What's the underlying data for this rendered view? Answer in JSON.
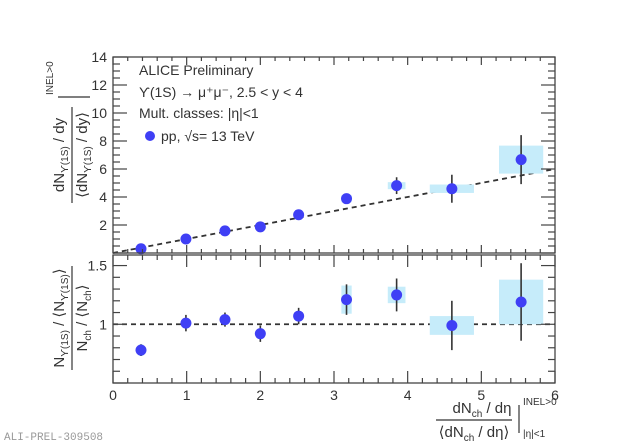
{
  "watermark": "ALI-PREL-309508",
  "chart_data": [
    {
      "panel": "top",
      "type": "scatter",
      "legend": {
        "header_lines": [
          "ALICE Preliminary",
          "ϒ(1S) → μ⁺μ⁻, 2.5 < y < 4",
          "Mult. classes: |η|<1"
        ],
        "entries": [
          {
            "label": "pp, √s = 13 TeV",
            "label_text": "pp, √s= 13 TeV",
            "color": "#3f3ff5"
          }
        ],
        "placement": "top-left"
      },
      "ylabel": {
        "num": "dN_ϒ(1S) / dy",
        "den": "⟨dN_ϒ(1S) / dy⟩",
        "sup": "INEL>0"
      },
      "ylim": [
        0,
        14
      ],
      "yticks": [
        2,
        4,
        6,
        8,
        10,
        12,
        14
      ],
      "xlim": [
        0,
        6
      ],
      "reference_line": {
        "type": "y=x",
        "style": "dashed"
      },
      "points": [
        {
          "x": 0.38,
          "y": 0.3,
          "stat": 0.05,
          "syst": 0.05,
          "sx": 0.03
        },
        {
          "x": 0.99,
          "y": 1.0,
          "stat": 0.07,
          "syst": 0.05,
          "sx": 0.03
        },
        {
          "x": 1.52,
          "y": 1.58,
          "stat": 0.08,
          "syst": 0.06,
          "sx": 0.03
        },
        {
          "x": 2.0,
          "y": 1.87,
          "stat": 0.1,
          "syst": 0.06,
          "sx": 0.03
        },
        {
          "x": 2.52,
          "y": 2.73,
          "stat": 0.18,
          "syst": 0.1,
          "sx": 0.04
        },
        {
          "x": 3.17,
          "y": 3.88,
          "stat": 0.3,
          "syst": 0.25,
          "sx": 0.07
        },
        {
          "x": 3.85,
          "y": 4.81,
          "stat": 0.6,
          "syst": 0.25,
          "sx": 0.12
        },
        {
          "x": 4.6,
          "y": 4.59,
          "stat": 1.0,
          "syst": 0.3,
          "sx": 0.3
        },
        {
          "x": 5.54,
          "y": 6.67,
          "stat": 1.75,
          "syst": 1.0,
          "sx": 0.3
        }
      ]
    },
    {
      "panel": "bottom",
      "type": "scatter",
      "ylabel": {
        "num": "N_ϒ(1S) / ⟨N_ϒ(1S)⟩",
        "den": "N_ch / ⟨N_ch⟩"
      },
      "ylim": [
        0.5,
        1.59
      ],
      "yticks": [
        1,
        1.5
      ],
      "ytick_labels": [
        "1",
        "1.5"
      ],
      "xlim": [
        0,
        6
      ],
      "xticks": [
        0,
        1,
        2,
        3,
        4,
        5,
        6
      ],
      "xtick_labels": [
        "0",
        "1",
        "2",
        "3",
        "4",
        "5",
        "6"
      ],
      "xlabel": {
        "num": "dN_ch / dη",
        "den": "⟨dN_ch / dη⟩",
        "sup": "INEL>0",
        "sub": "|η|<1"
      },
      "reference_line": {
        "type": "y=1",
        "style": "dashed"
      },
      "points": [
        {
          "x": 0.38,
          "y": 0.78,
          "stat": 0.05,
          "syst": 0.05,
          "sx": 0.03
        },
        {
          "x": 0.99,
          "y": 1.01,
          "stat": 0.07,
          "syst": 0.03,
          "sx": 0.03
        },
        {
          "x": 1.52,
          "y": 1.04,
          "stat": 0.06,
          "syst": 0.03,
          "sx": 0.03
        },
        {
          "x": 2.0,
          "y": 0.92,
          "stat": 0.07,
          "syst": 0.03,
          "sx": 0.03
        },
        {
          "x": 2.52,
          "y": 1.07,
          "stat": 0.07,
          "syst": 0.04,
          "sx": 0.03
        },
        {
          "x": 3.17,
          "y": 1.21,
          "stat": 0.13,
          "syst": 0.12,
          "sx": 0.07
        },
        {
          "x": 3.85,
          "y": 1.25,
          "stat": 0.14,
          "syst": 0.07,
          "sx": 0.12
        },
        {
          "x": 4.6,
          "y": 0.99,
          "stat": 0.21,
          "syst": 0.08,
          "sx": 0.3
        },
        {
          "x": 5.54,
          "y": 1.19,
          "stat": 0.33,
          "syst": 0.19,
          "sx": 0.3
        }
      ]
    }
  ],
  "colors": {
    "marker": "#3f3ff5",
    "syst_box": "#c6ecfa",
    "axis": "#444444",
    "text": "#333333",
    "errbar": "#333333",
    "dash": "#333333"
  }
}
